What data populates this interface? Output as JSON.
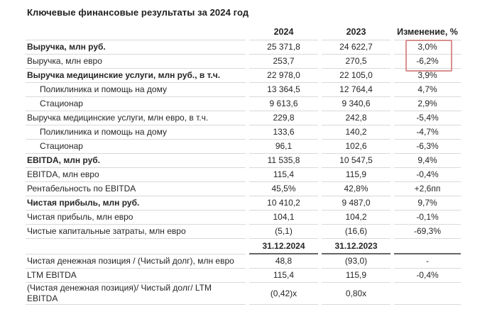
{
  "title": "Ключевые финансовые результаты за 2024 год",
  "colors": {
    "text": "#262626",
    "row_border": "#d9d9d9",
    "date_underline": "#666666",
    "highlight_border": "#d98f8f"
  },
  "table": {
    "headers": [
      "",
      "2024",
      "2023",
      "Изменение, %"
    ],
    "rows": [
      {
        "label": "Выручка, млн руб.",
        "values": [
          "25 371,8",
          "24 622,7",
          "3,0%"
        ],
        "bold": true,
        "highlighted": true
      },
      {
        "label": "Выручка, млн евро",
        "values": [
          "253,7",
          "270,5",
          "-6,2%"
        ],
        "highlighted": true
      },
      {
        "label": "Выручка медицинские услуги, млн руб., в т.ч.",
        "values": [
          "22 978,0",
          "22 105,0",
          "3,9%"
        ],
        "bold": true
      },
      {
        "label": "Поликлиника и помощь на дому",
        "values": [
          "13 364,5",
          "12 764,4",
          "4,7%"
        ],
        "indent": true
      },
      {
        "label": "Стационар",
        "values": [
          "9 613,6",
          "9 340,6",
          "2,9%"
        ],
        "indent": true
      },
      {
        "label": "Выручка медицинские услуги, млн евро, в т.ч.",
        "values": [
          "229,8",
          "242,8",
          "-5,4%"
        ]
      },
      {
        "label": "Поликлиника и помощь на дому",
        "values": [
          "133,6",
          "140,2",
          "-4,7%"
        ],
        "indent": true
      },
      {
        "label": "Стационар",
        "values": [
          "96,1",
          "102,6",
          "-6,3%"
        ],
        "indent": true
      },
      {
        "label": "EBITDA, млн руб.",
        "values": [
          "11 535,8",
          "10 547,5",
          "9,4%"
        ],
        "bold": true
      },
      {
        "label": "EBITDA, млн евро",
        "values": [
          "115,4",
          "115,9",
          "-0,4%"
        ]
      },
      {
        "label": "Рентабельность по EBITDA",
        "values": [
          "45,5%",
          "42,8%",
          "+2,6пп"
        ]
      },
      {
        "label": "Чистая прибыль, млн руб.",
        "values": [
          "10 410,2",
          "9 487,0",
          "9,7%"
        ],
        "bold": true
      },
      {
        "label": "Чистая прибыль, млн евро",
        "values": [
          "104,1",
          "104,2",
          "-0,1%"
        ]
      },
      {
        "label": "Чистые капитальные затраты, млн евро",
        "values": [
          "(5,1)",
          "(16,6)",
          "-69,3%"
        ]
      },
      {
        "label": "",
        "values": [
          "31.12.2024",
          "31.12.2023",
          ""
        ],
        "date_row": true
      },
      {
        "label": "Чистая денежная позиция / (Чистый долг), млн евро",
        "values": [
          "48,8",
          "(93,0)",
          "-"
        ]
      },
      {
        "label": "LTM EBITDA",
        "values": [
          "115,4",
          "115,9",
          "-0,4%"
        ]
      },
      {
        "label": "(Чистая денежная позиция)/ Чистый долг/ LTM EBITDA",
        "values": [
          "(0,42)x",
          "0,80x",
          ""
        ]
      }
    ]
  }
}
